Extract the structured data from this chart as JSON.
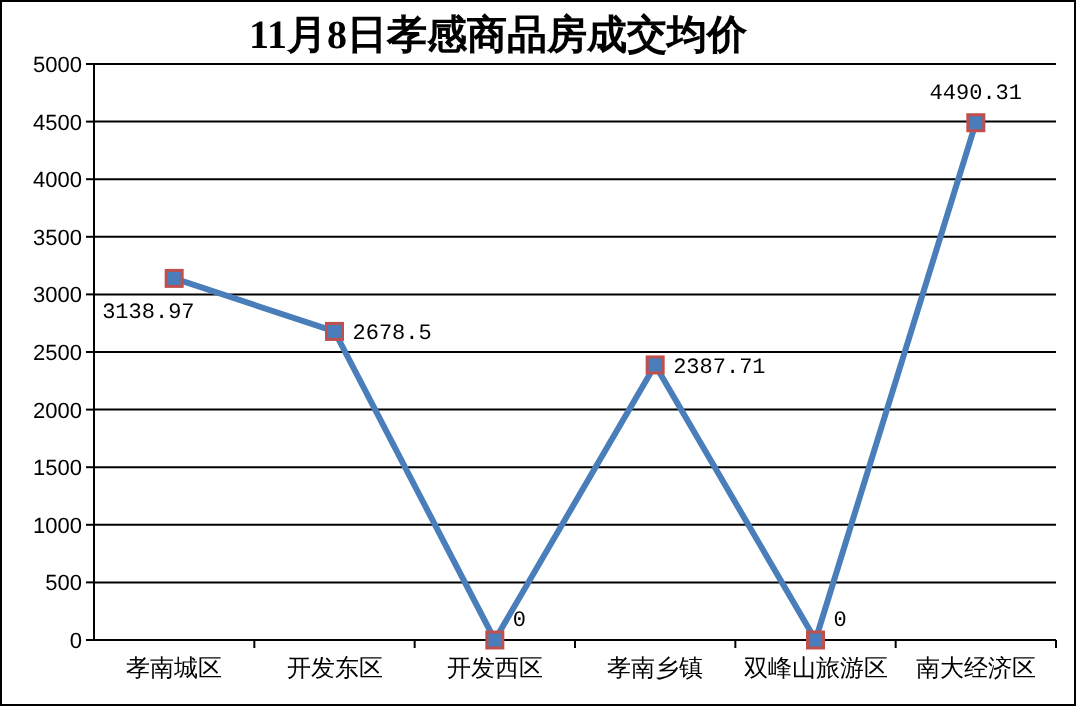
{
  "chart_data": {
    "type": "line",
    "title": "11月8日孝感商品房成交均价",
    "categories": [
      "孝南城区",
      "开发东区",
      "开发西区",
      "孝南乡镇",
      "双峰山旅游区",
      "南大经济区"
    ],
    "series": [
      {
        "color": "#4a7ebb",
        "values": [
          3138.97,
          2678.5,
          0,
          2387.71,
          0,
          4490.31
        ]
      }
    ],
    "ylim": [
      0,
      5000
    ],
    "yticks": [
      0,
      500,
      1000,
      1500,
      2000,
      2500,
      3000,
      3500,
      4000,
      4500,
      5000
    ],
    "grid": "y",
    "marker": "square",
    "line_style": "solid",
    "data_labels": true
  }
}
